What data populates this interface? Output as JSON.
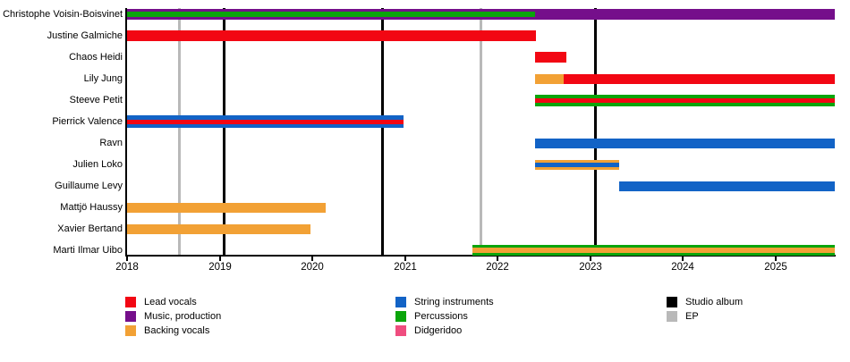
{
  "chart_data": {
    "type": "timeline",
    "title": "",
    "x_axis": {
      "start_year": 2018,
      "end_year": 2025.64,
      "tick_years": [
        2018,
        2019,
        2020,
        2021,
        2022,
        2023,
        2024,
        2025
      ]
    },
    "colors": {
      "lead_vocals": "#f20713",
      "music_production": "#750f8b",
      "backing_vocals": "#f2a135",
      "string_instruments": "#1263c6",
      "percussions": "#0ba50b",
      "didgeridoo": "#ef4d7f",
      "studio_album": "#000000",
      "ep": "#b9b9b9"
    },
    "members": [
      {
        "name": "Christophe Voisin-Boisvinet",
        "bars": [
          {
            "role": "Music, production",
            "color": "music_production",
            "start": 2018.0,
            "end": 2025.64,
            "height": 12
          },
          {
            "role": "Percussions",
            "color": "percussions",
            "start": 2018.0,
            "end": 2022.4,
            "height": 6
          }
        ]
      },
      {
        "name": "Justine Galmiche",
        "bars": [
          {
            "role": "Lead vocals",
            "color": "lead_vocals",
            "start": 2018.0,
            "end": 2022.41,
            "height": 12
          }
        ]
      },
      {
        "name": "Chaos Heidi",
        "bars": [
          {
            "role": "Lead vocals",
            "color": "lead_vocals",
            "start": 2022.4,
            "end": 2022.74,
            "height": 12
          }
        ]
      },
      {
        "name": "Lily Jung",
        "bars": [
          {
            "role": "Backing vocals",
            "color": "backing_vocals",
            "start": 2022.4,
            "end": 2022.71,
            "height": 11
          },
          {
            "role": "Lead vocals",
            "color": "lead_vocals",
            "start": 2022.71,
            "end": 2025.64,
            "height": 11
          }
        ]
      },
      {
        "name": "Steeve Petit",
        "bars": [
          {
            "role": "Percussions",
            "color": "percussions",
            "start": 2022.4,
            "end": 2025.64,
            "height": 13
          },
          {
            "role": "Lead vocals",
            "color": "lead_vocals",
            "start": 2022.4,
            "end": 2025.64,
            "height": 5
          }
        ]
      },
      {
        "name": "Pierrick Valence",
        "bars": [
          {
            "role": "String instruments",
            "color": "string_instruments",
            "start": 2018.0,
            "end": 2020.98,
            "height": 14
          },
          {
            "role": "Lead vocals",
            "color": "lead_vocals",
            "start": 2018.0,
            "end": 2020.98,
            "height": 5
          }
        ]
      },
      {
        "name": "Ravn",
        "bars": [
          {
            "role": "String instruments",
            "color": "string_instruments",
            "start": 2022.4,
            "end": 2025.64,
            "height": 11
          }
        ]
      },
      {
        "name": "Julien Loko",
        "bars": [
          {
            "role": "Backing vocals",
            "color": "backing_vocals",
            "start": 2022.4,
            "end": 2023.31,
            "height": 11
          },
          {
            "role": "String instruments",
            "color": "string_instruments",
            "start": 2022.4,
            "end": 2023.31,
            "height": 5
          }
        ]
      },
      {
        "name": "Guillaume Levy",
        "bars": [
          {
            "role": "String instruments",
            "color": "string_instruments",
            "start": 2023.31,
            "end": 2025.64,
            "height": 11
          }
        ]
      },
      {
        "name": "Mattjö Haussy",
        "bars": [
          {
            "role": "Backing vocals",
            "color": "backing_vocals",
            "start": 2018.0,
            "end": 2020.14,
            "height": 11
          }
        ]
      },
      {
        "name": "Xavier Bertand",
        "bars": [
          {
            "role": "Backing vocals",
            "color": "backing_vocals",
            "start": 2018.0,
            "end": 2019.98,
            "height": 11
          }
        ]
      },
      {
        "name": "Marti Ilmar Uibo",
        "bars": [
          {
            "role": "Percussions",
            "color": "percussions",
            "start": 2021.73,
            "end": 2025.64,
            "height": 12
          },
          {
            "role": "Backing vocals",
            "color": "backing_vocals",
            "start": 2021.73,
            "end": 2025.64,
            "height": 6
          }
        ]
      }
    ],
    "events": [
      {
        "kind": "ep",
        "label": "EP",
        "year": 2018.56
      },
      {
        "kind": "studio_album",
        "label": "Studio album",
        "year": 2019.04
      },
      {
        "kind": "studio_album",
        "label": "Studio album",
        "year": 2020.75
      },
      {
        "kind": "ep",
        "label": "EP",
        "year": 2021.82
      },
      {
        "kind": "studio_album",
        "label": "Studio album",
        "year": 2023.05
      }
    ],
    "legend": {
      "columns": [
        {
          "items": [
            {
              "label": "Lead vocals",
              "color": "lead_vocals"
            },
            {
              "label": "Music, production",
              "color": "music_production"
            },
            {
              "label": "Backing vocals",
              "color": "backing_vocals"
            }
          ]
        },
        {
          "items": [
            {
              "label": "String instruments",
              "color": "string_instruments"
            },
            {
              "label": "Percussions",
              "color": "percussions"
            },
            {
              "label": "Didgeridoo",
              "color": "didgeridoo"
            }
          ]
        },
        {
          "items": [
            {
              "label": "Studio album",
              "color": "studio_album"
            },
            {
              "label": "EP",
              "color": "ep"
            }
          ]
        }
      ]
    }
  }
}
